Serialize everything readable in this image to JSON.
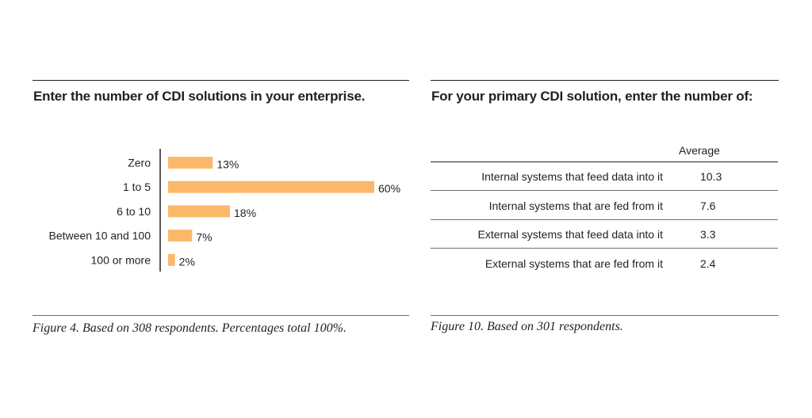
{
  "colors": {
    "bar": "#fbb86b",
    "text": "#231f20",
    "rule": "#231f20"
  },
  "left_panel": {
    "title": "Enter the number of CDI solutions in your enterprise.",
    "caption": "Figure 4. Based on 308 respondents. Percentages total 100%."
  },
  "right_panel": {
    "title": "For your primary CDI solution, enter the number of:",
    "caption": "Figure 10. Based on 301 respondents.",
    "column_header": "Average",
    "rows": [
      {
        "label": "Internal systems that feed data into it",
        "value": "10.3"
      },
      {
        "label": "Internal systems that are fed from it",
        "value": "7.6"
      },
      {
        "label": "External systems that feed data into it",
        "value": "3.3"
      },
      {
        "label": "External systems that are fed from it",
        "value": "2.4"
      }
    ]
  },
  "chart_data": [
    {
      "type": "bar",
      "orientation": "horizontal",
      "title": "Enter the number of CDI solutions in your enterprise.",
      "categories": [
        "Zero",
        "1 to 5",
        "6 to 10",
        "Between 10 and 100",
        "100 or more"
      ],
      "values": [
        13,
        60,
        18,
        7,
        2
      ],
      "value_labels": [
        "13%",
        "60%",
        "18%",
        "7%",
        "2%"
      ],
      "unit": "%",
      "xlim": [
        0,
        60
      ],
      "grid": false,
      "legend": "none"
    },
    {
      "type": "table",
      "title": "For your primary CDI solution, enter the number of:",
      "columns": [
        "",
        "Average"
      ],
      "rows": [
        [
          "Internal systems that feed data into it",
          10.3
        ],
        [
          "Internal systems that are fed from it",
          7.6
        ],
        [
          "External systems that feed data into it",
          3.3
        ],
        [
          "External systems that are fed from it",
          2.4
        ]
      ]
    }
  ]
}
